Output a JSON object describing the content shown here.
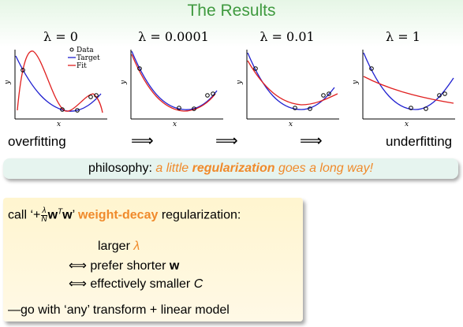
{
  "title": "The Results",
  "panels": [
    {
      "lambda": "λ = 0",
      "legend": [
        "Data",
        "Target",
        "Fit"
      ]
    },
    {
      "lambda": "λ = 0.0001"
    },
    {
      "lambda": "λ = 0.01"
    },
    {
      "lambda": "λ = 1"
    }
  ],
  "axes": {
    "x": "x",
    "y": "y"
  },
  "bottom": {
    "left": "overfitting",
    "right": "underfitting",
    "arrow": "⟹"
  },
  "philosophy": {
    "prefix": "philosophy: ",
    "part1": "a little ",
    "bold": "regularization",
    "part2": " goes a long way!"
  },
  "box": {
    "call_prefix": "call ‘+",
    "frac_num": "λ",
    "frac_den": "N",
    "w_T": "w",
    "sup_T": "T",
    "w": "w",
    "call_quote_end": "’ ",
    "weight_decay": "weight-decay",
    "call_suffix": " regularization:",
    "larger": "larger ",
    "lambda_sym": "λ",
    "iff": "⟺",
    "prefer": " prefer shorter ",
    "prefer_w": "w",
    "effectively": " effectively smaller ",
    "C": "C",
    "go_with": "—go with ‘any’ transform + linear model"
  },
  "colors": {
    "title": "#3f9a3f",
    "target": "#2020d0",
    "fit": "#e02020",
    "accent": "#f08a2b"
  }
}
